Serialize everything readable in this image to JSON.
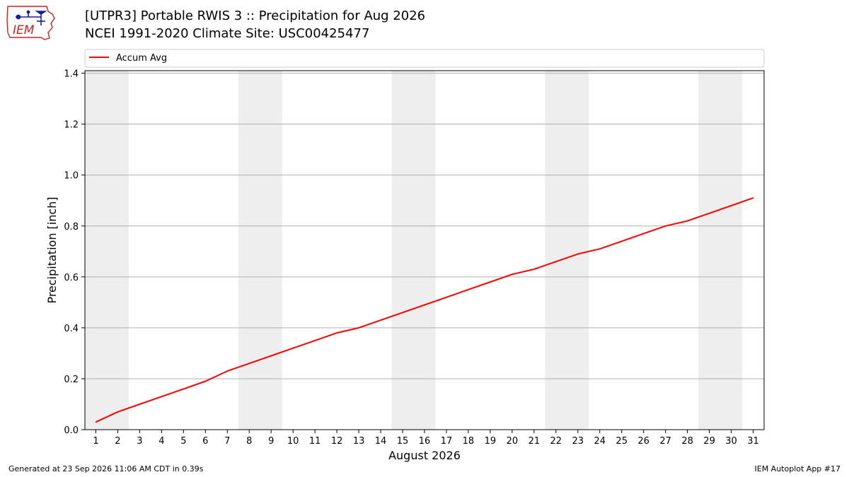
{
  "header": {
    "title_line1": "[UTPR3] Portable RWIS 3 :: Precipitation for Aug 2026",
    "title_line2": "NCEI 1991-2020 Climate Site: USC00425477",
    "logo_text": "IEM"
  },
  "footer": {
    "generated": "Generated at 23 Sep 2026 11:06 AM CDT in 0.39s",
    "app": "IEM Autoplot App #17"
  },
  "colors": {
    "line": "#ff0000",
    "weekend_shade": "#eeeeee",
    "grid": "#b0b0b0",
    "logo_red": "#cc2222",
    "logo_blue": "#1a1aa6"
  },
  "chart_data": {
    "type": "line",
    "xlabel": "August 2026",
    "ylabel": "Precipitation [inch]",
    "xlim": [
      0.5,
      31.5
    ],
    "ylim": [
      0,
      1.41
    ],
    "grid": "horizontal",
    "legend_placement": "top",
    "x": [
      1,
      2,
      3,
      4,
      5,
      6,
      7,
      8,
      9,
      10,
      11,
      12,
      13,
      14,
      15,
      16,
      17,
      18,
      19,
      20,
      21,
      22,
      23,
      24,
      25,
      26,
      27,
      28,
      29,
      30,
      31
    ],
    "xticks": [
      "1",
      "2",
      "3",
      "4",
      "5",
      "6",
      "7",
      "8",
      "9",
      "10",
      "11",
      "12",
      "13",
      "14",
      "15",
      "16",
      "17",
      "18",
      "19",
      "20",
      "21",
      "22",
      "23",
      "24",
      "25",
      "26",
      "27",
      "28",
      "29",
      "30",
      "31"
    ],
    "yticks": [
      {
        "value": 0.0,
        "label": "0.0"
      },
      {
        "value": 0.2,
        "label": "0.2"
      },
      {
        "value": 0.4,
        "label": "0.4"
      },
      {
        "value": 0.6,
        "label": "0.6"
      },
      {
        "value": 0.8,
        "label": "0.8"
      },
      {
        "value": 1.0,
        "label": "1.0"
      },
      {
        "value": 1.2,
        "label": "1.2"
      },
      {
        "value": 1.4,
        "label": "1.4"
      }
    ],
    "shaded_day_ranges": [
      [
        1,
        2
      ],
      [
        8,
        9
      ],
      [
        15,
        16
      ],
      [
        22,
        23
      ],
      [
        29,
        30
      ]
    ],
    "series": [
      {
        "name": "Accum Avg",
        "values": [
          0.03,
          0.07,
          0.1,
          0.13,
          0.16,
          0.19,
          0.23,
          0.26,
          0.29,
          0.32,
          0.35,
          0.38,
          0.4,
          0.43,
          0.46,
          0.49,
          0.52,
          0.55,
          0.58,
          0.61,
          0.63,
          0.66,
          0.69,
          0.71,
          0.74,
          0.77,
          0.8,
          0.82,
          0.85,
          0.88,
          0.91
        ]
      }
    ]
  }
}
